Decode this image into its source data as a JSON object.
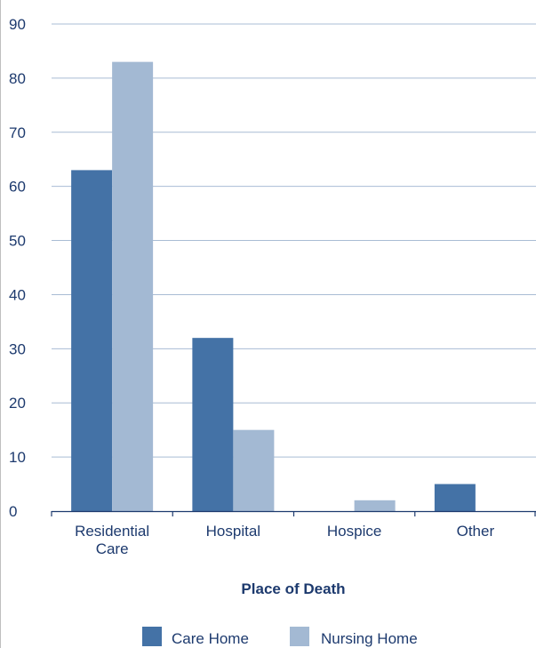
{
  "chart_data": {
    "type": "bar",
    "title": "",
    "xlabel": "Place of Death",
    "ylabel": "",
    "ylim": [
      0,
      90
    ],
    "yticks": [
      0,
      10,
      20,
      30,
      40,
      50,
      60,
      70,
      80,
      90
    ],
    "grid": true,
    "legend_position": "bottom",
    "categories": [
      [
        "Residential",
        "Care"
      ],
      [
        "Hospital"
      ],
      [
        "Hospice"
      ],
      [
        "Other"
      ]
    ],
    "series": [
      {
        "name": "Care Home",
        "color": "#4472a6",
        "values": [
          63,
          32,
          0,
          5
        ]
      },
      {
        "name": "Nursing Home",
        "color": "#a3b9d3",
        "values": [
          83,
          15,
          2,
          0
        ]
      }
    ]
  }
}
